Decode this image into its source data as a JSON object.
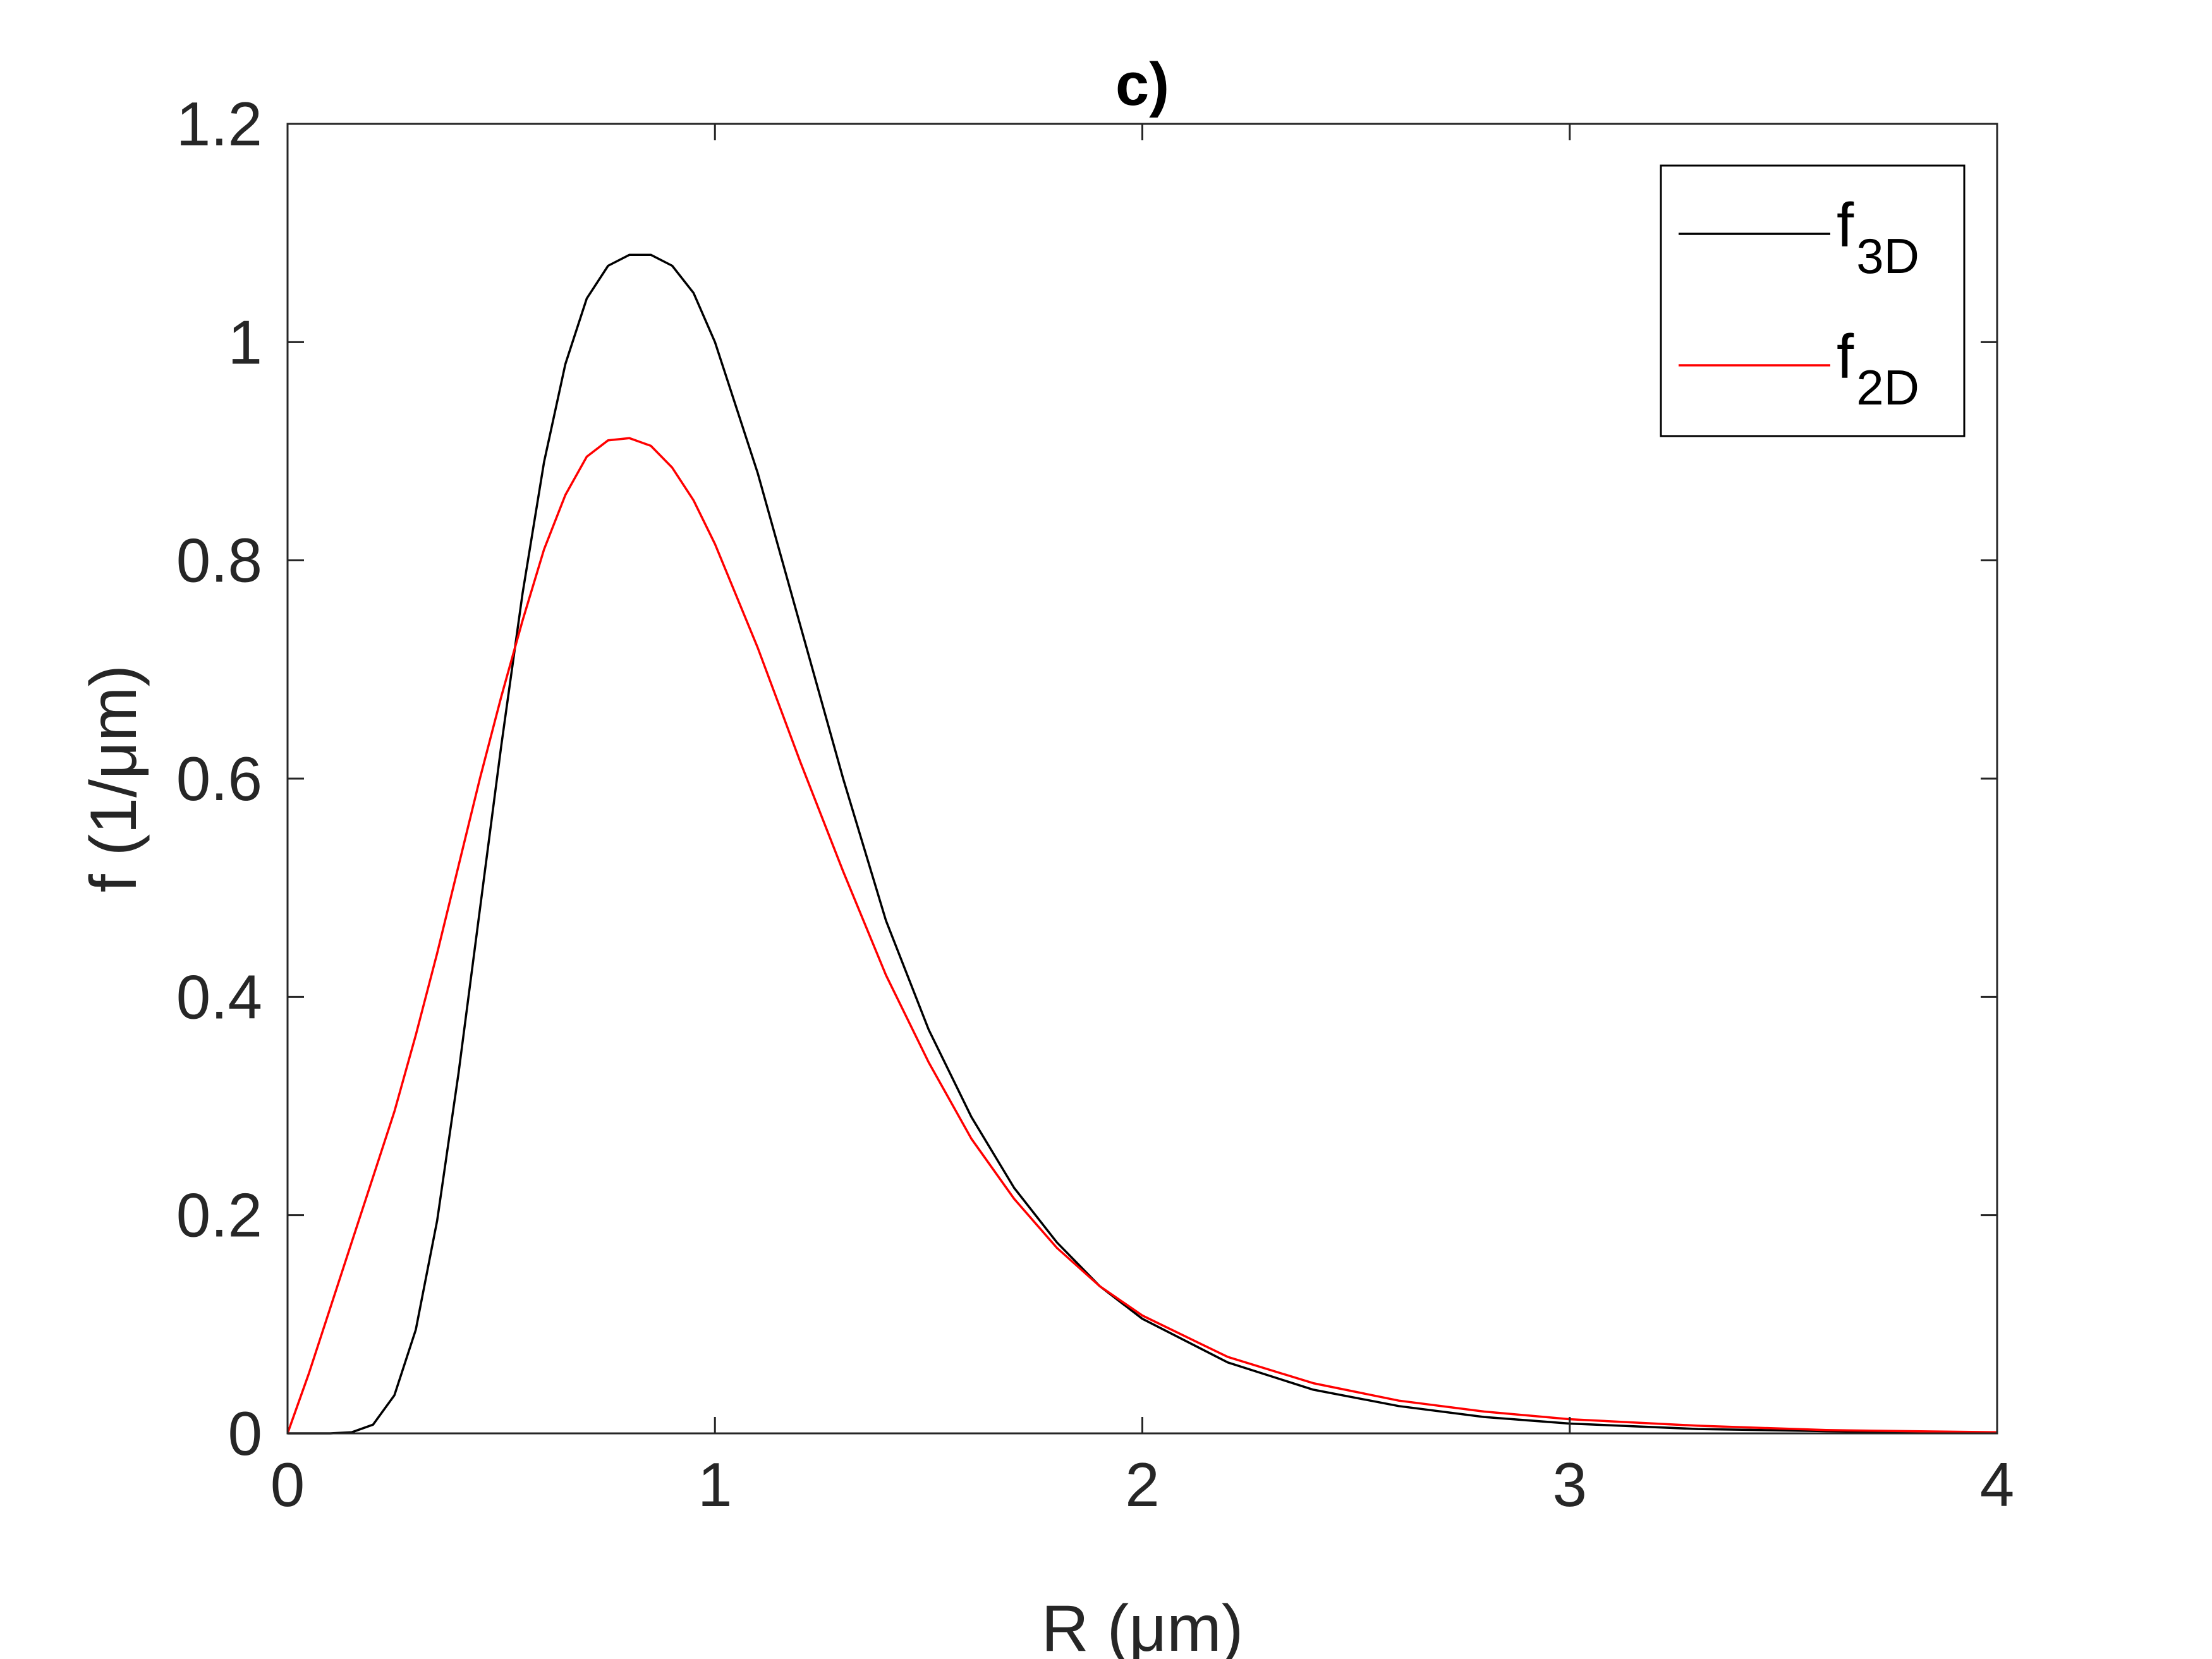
{
  "chart_data": {
    "type": "line",
    "title": "c)",
    "xlabel": "R (μm)",
    "ylabel": "f (1/μm)",
    "xlim": [
      0,
      4
    ],
    "ylim": [
      0,
      1.2
    ],
    "x_ticks": [
      "0",
      "1",
      "2",
      "3",
      "4"
    ],
    "y_ticks": [
      "0",
      "0.2",
      "0.4",
      "0.6",
      "0.8",
      "1",
      "1.2"
    ],
    "grid": false,
    "legend_position": "top-right",
    "series": [
      {
        "name": "f3D",
        "legend_base": "f",
        "legend_sub": "3D",
        "color": "#000000",
        "x": [
          0,
          0.1,
          0.15,
          0.2,
          0.25,
          0.3,
          0.35,
          0.4,
          0.45,
          0.5,
          0.55,
          0.6,
          0.65,
          0.7,
          0.75,
          0.8,
          0.85,
          0.9,
          0.95,
          1.0,
          1.1,
          1.2,
          1.3,
          1.4,
          1.5,
          1.6,
          1.7,
          1.8,
          1.9,
          2.0,
          2.2,
          2.4,
          2.6,
          2.8,
          3.0,
          3.3,
          3.6,
          4.0
        ],
        "y": [
          0,
          0,
          0.001,
          0.008,
          0.035,
          0.095,
          0.195,
          0.33,
          0.48,
          0.63,
          0.77,
          0.89,
          0.98,
          1.04,
          1.07,
          1.08,
          1.08,
          1.07,
          1.045,
          1.0,
          0.88,
          0.74,
          0.6,
          0.47,
          0.37,
          0.29,
          0.225,
          0.175,
          0.135,
          0.105,
          0.065,
          0.04,
          0.025,
          0.015,
          0.009,
          0.004,
          0.002,
          0.0005
        ]
      },
      {
        "name": "f2D",
        "legend_base": "f",
        "legend_sub": "2D",
        "color": "#ff0000",
        "x": [
          0,
          0.05,
          0.1,
          0.15,
          0.2,
          0.25,
          0.3,
          0.35,
          0.4,
          0.45,
          0.5,
          0.55,
          0.6,
          0.65,
          0.7,
          0.75,
          0.8,
          0.85,
          0.9,
          0.95,
          1.0,
          1.1,
          1.2,
          1.3,
          1.4,
          1.5,
          1.6,
          1.7,
          1.8,
          1.9,
          2.0,
          2.2,
          2.4,
          2.6,
          2.8,
          3.0,
          3.3,
          3.6,
          4.0
        ],
        "y": [
          0,
          0.055,
          0.115,
          0.175,
          0.235,
          0.295,
          0.365,
          0.44,
          0.52,
          0.6,
          0.675,
          0.745,
          0.81,
          0.86,
          0.895,
          0.91,
          0.912,
          0.905,
          0.885,
          0.855,
          0.815,
          0.72,
          0.615,
          0.515,
          0.42,
          0.34,
          0.27,
          0.215,
          0.17,
          0.135,
          0.108,
          0.07,
          0.046,
          0.03,
          0.02,
          0.013,
          0.007,
          0.003,
          0.001
        ]
      }
    ]
  }
}
